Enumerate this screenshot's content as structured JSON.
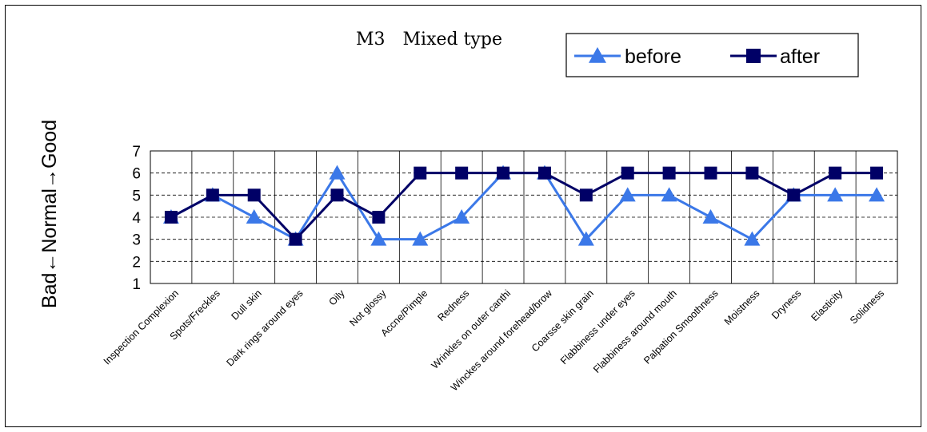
{
  "chart_data": {
    "type": "line",
    "title": "M3　Mixed type",
    "xlabel": "",
    "ylabel": "Bad←Normal→Good",
    "ylim": [
      1,
      7
    ],
    "yticks": [
      "1",
      "2",
      "3",
      "4",
      "5",
      "6",
      "7"
    ],
    "grid": true,
    "legend_position": "top-right",
    "categories": [
      "Inspection  Complexion",
      "Spots/Freckles",
      "Dull skin",
      "Dark rings around eyes",
      "Oily",
      "Not glossy",
      "Accne/Pimple",
      "Redness",
      "Wrinkles on outer canthi",
      "Winckes around forehead/brow",
      "Coarsse skin grain",
      "Flabbiness under eyes",
      "Flabbiness around mouth",
      "Palpation  Smoothness",
      "Moistness",
      "Dryness",
      "Elasticity",
      "Solidness"
    ],
    "series": [
      {
        "name": "before",
        "color": "#3b78e8",
        "marker": "triangle",
        "values": [
          4,
          5,
          4,
          3,
          6,
          3,
          3,
          4,
          6,
          6,
          3,
          5,
          5,
          4,
          3,
          5,
          5,
          5
        ]
      },
      {
        "name": "after",
        "color": "#000066",
        "marker": "square",
        "values": [
          4,
          5,
          5,
          3,
          5,
          4,
          6,
          6,
          6,
          6,
          5,
          6,
          6,
          6,
          6,
          5,
          6,
          6
        ]
      }
    ]
  }
}
